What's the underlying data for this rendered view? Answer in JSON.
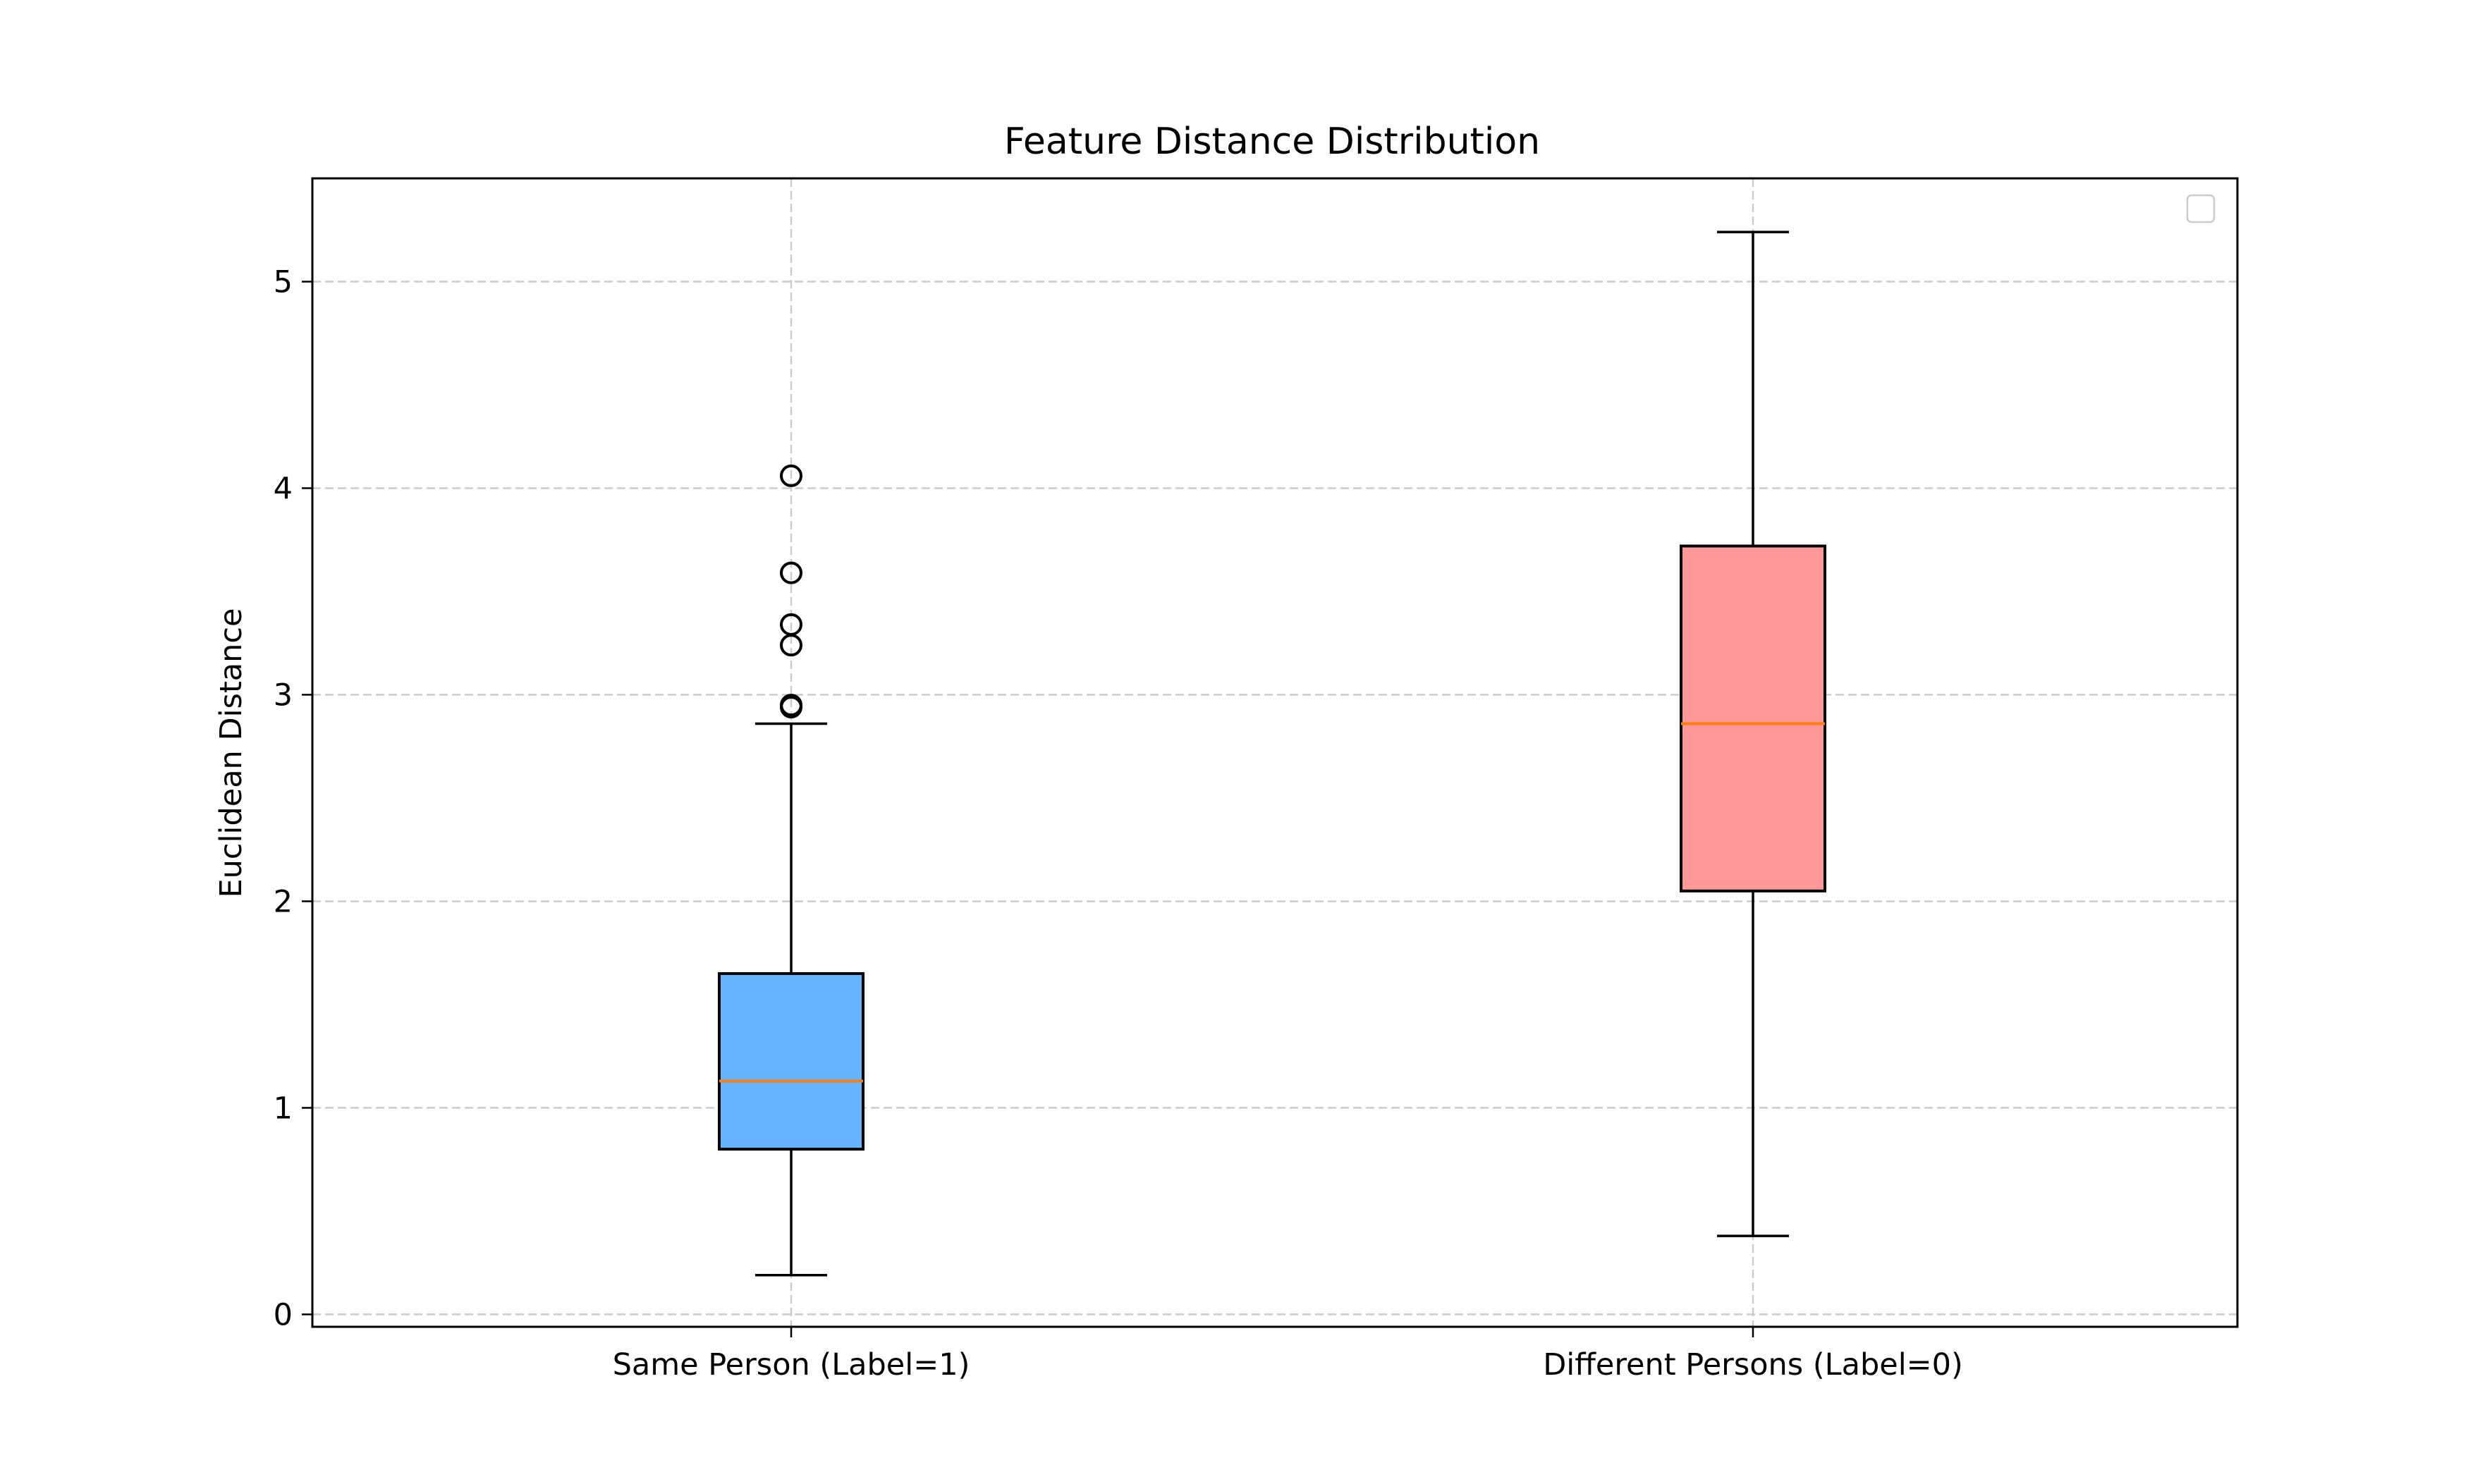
{
  "chart_data": {
    "type": "box",
    "title": "Feature Distance Distribution",
    "xlabel": "",
    "ylabel": "Euclidean Distance",
    "ylim": [
      -0.06,
      5.5
    ],
    "yticks": [
      0,
      1,
      2,
      3,
      4,
      5
    ],
    "grid": true,
    "legend": "top-right (empty)",
    "categories": [
      "Same Person (Label=1)",
      "Different Persons (Label=0)"
    ],
    "series": [
      {
        "category": "Same Person (Label=1)",
        "whisker_low": 0.19,
        "q1": 0.8,
        "median": 1.13,
        "q3": 1.65,
        "whisker_high": 2.86,
        "outliers": [
          2.94,
          2.95,
          3.24,
          3.34,
          3.59,
          4.06
        ],
        "color": "#66b3ff"
      },
      {
        "category": "Different Persons (Label=0)",
        "whisker_low": 0.38,
        "q1": 2.05,
        "median": 2.86,
        "q3": 3.72,
        "whisker_high": 5.24,
        "outliers": [],
        "color": "#ff9999"
      }
    ],
    "median_color": "#ff7f0e",
    "grid_color": "#cccccc"
  }
}
